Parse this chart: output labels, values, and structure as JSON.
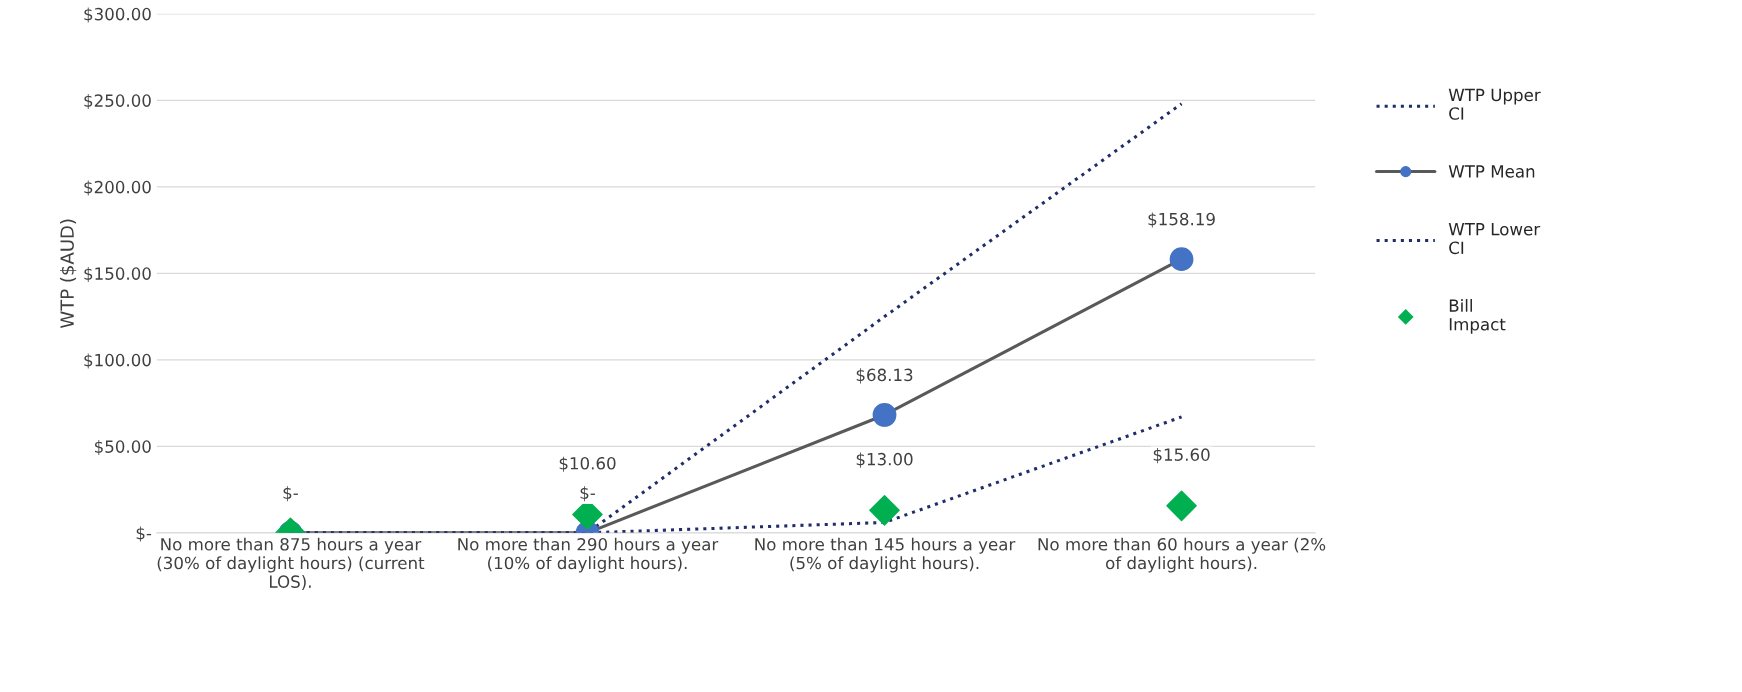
{
  "chart_data": {
    "type": "line",
    "ylabel": "WTP ($AUD)",
    "categories": [
      "No more than 875 hours a year (30% of daylight hours) (current LOS).",
      "No more than 290 hours a year (10% of daylight hours).",
      "No more than 145 hours a year (5% of daylight hours).",
      "No more than 60 hours a year (2% of daylight hours)."
    ],
    "series": [
      {
        "name": "WTP Upper CI",
        "color": "#1f2d6b",
        "line_style": "dotted",
        "values": [
          0,
          0,
          125,
          248
        ]
      },
      {
        "name": "WTP Mean",
        "color": "#595959",
        "marker": "circle",
        "colors": [
          "#4472c4",
          "#4472c4",
          "#4472c4",
          "#4472c4"
        ],
        "line_style": "solid",
        "values": [
          0,
          0,
          68.13,
          158.19
        ],
        "value_labels": [
          "$-",
          "$-",
          "$68.13",
          "$158.19"
        ]
      },
      {
        "name": "WTP Lower CI",
        "color": "#1f2d6b",
        "line_style": "dotted",
        "values": [
          0,
          0,
          6,
          67
        ]
      },
      {
        "name": "Bill Impact",
        "type": "scatter",
        "color": "#00b050",
        "marker": "diamond",
        "values": [
          0,
          10.6,
          13.0,
          15.6
        ],
        "value_labels": [
          null,
          "$10.60",
          "$13.00",
          "$15.60"
        ]
      }
    ],
    "ylim": [
      0,
      300
    ],
    "yticks": [
      {
        "value": 0,
        "label": "$-"
      },
      {
        "value": 50,
        "label": "$50.00"
      },
      {
        "value": 100,
        "label": "$100.00"
      },
      {
        "value": 150,
        "label": "$150.00"
      },
      {
        "value": 200,
        "label": "$200.00"
      },
      {
        "value": 250,
        "label": "$250.00"
      },
      {
        "value": 300,
        "label": "$300.00"
      }
    ],
    "grid": "y",
    "legend": "right"
  }
}
